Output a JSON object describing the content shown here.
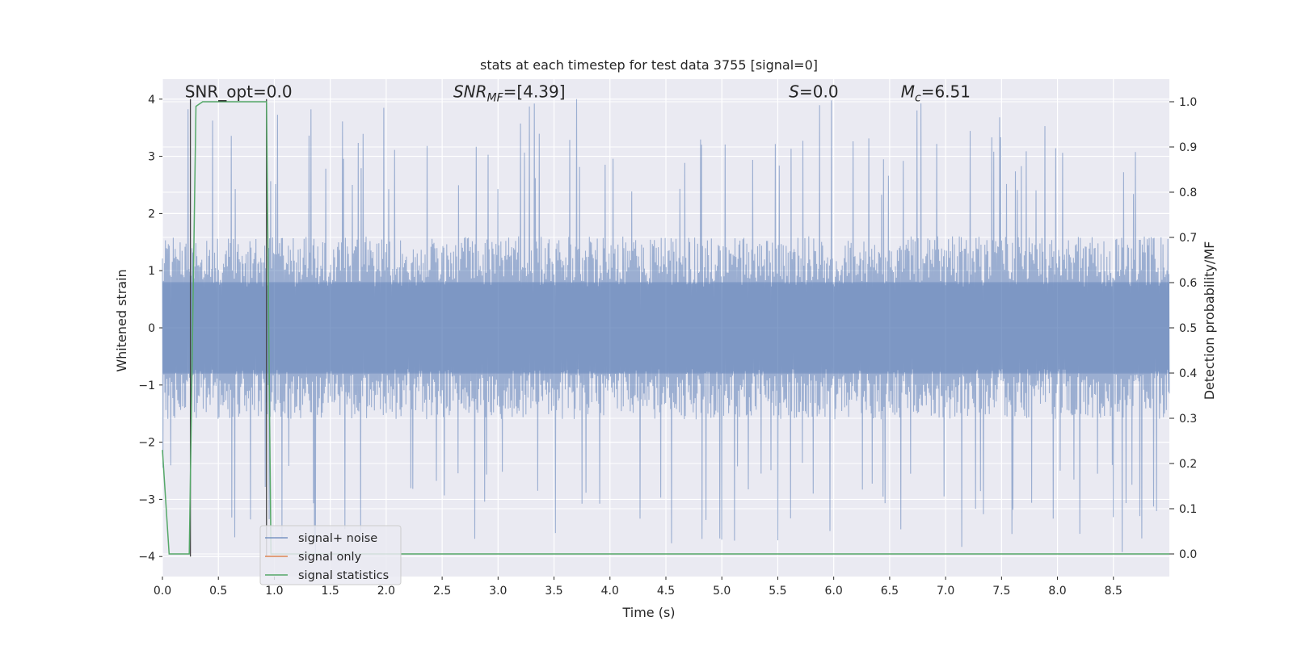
{
  "chart_data": {
    "type": "line",
    "title": "stats at each timestep for test data 3755 [signal=0]",
    "xlabel": "Time (s)",
    "ylabel": "Whitened strain",
    "y2label": "Detection probability/MF",
    "xlim": [
      0,
      9.0
    ],
    "ylim": [
      -4.35,
      4.35
    ],
    "y2lim": [
      -0.05,
      1.05
    ],
    "xticks": [
      0.0,
      0.5,
      1.0,
      1.5,
      2.0,
      2.5,
      3.0,
      3.5,
      4.0,
      4.5,
      5.0,
      5.5,
      6.0,
      6.5,
      7.0,
      7.5,
      8.0,
      8.5
    ],
    "xtick_labels": [
      "0.0",
      "0.5",
      "1.0",
      "1.5",
      "2.0",
      "2.5",
      "3.0",
      "3.5",
      "4.0",
      "4.5",
      "5.0",
      "5.5",
      "6.0",
      "6.5",
      "7.0",
      "7.5",
      "8.0",
      "8.5"
    ],
    "yticks": [
      4,
      3,
      2,
      1,
      0,
      -1,
      -2,
      -3,
      -4
    ],
    "ytick_labels": [
      "4",
      "3",
      "2",
      "1",
      "0",
      "−1",
      "−2",
      "−3",
      "−4"
    ],
    "y2ticks": [
      1.0,
      0.9,
      0.8,
      0.7,
      0.6,
      0.5,
      0.4,
      0.3,
      0.2,
      0.1,
      0.0
    ],
    "y2tick_labels": [
      "1.0",
      "0.9",
      "0.8",
      "0.7",
      "0.6",
      "0.5",
      "0.4",
      "0.3",
      "0.2",
      "0.1",
      "0.0"
    ],
    "grid": true,
    "legend_position": "lower-left",
    "annotations": [
      {
        "text": "SNR_opt=0.0",
        "x": 0.2,
        "y": 4.1
      },
      {
        "text": "SNR_MF=[4.39]",
        "x": 2.6,
        "y": 4.1
      },
      {
        "text": "S=0.0",
        "x": 5.6,
        "y": 4.1
      },
      {
        "text": "M_c=6.51",
        "x": 6.6,
        "y": 4.1
      }
    ],
    "series": [
      {
        "name": "signal+ noise",
        "kind": "noise",
        "color": "#4c72b0",
        "axis": "left",
        "core_amplitude": 1.6,
        "max_amplitude": 4.0,
        "n_samples": 2048
      },
      {
        "name": "signal only",
        "kind": "line",
        "color": "#dd8452",
        "axis": "left",
        "x": [],
        "y": []
      },
      {
        "name": "signal statistics",
        "kind": "line",
        "color": "#55a868",
        "axis": "right",
        "x": [
          0.0,
          0.06,
          0.12,
          0.18,
          0.24,
          0.3,
          0.36,
          0.42,
          0.48,
          0.54,
          0.6,
          0.66,
          0.72,
          0.78,
          0.84,
          0.9,
          0.93,
          0.97,
          1.02,
          9.0
        ],
        "y": [
          0.23,
          0.0,
          0.0,
          0.0,
          0.0,
          0.99,
          1.0,
          1.0,
          1.0,
          1.0,
          1.0,
          1.0,
          1.0,
          1.0,
          1.0,
          1.0,
          1.0,
          0.0,
          0.0,
          0.0
        ]
      },
      {
        "name": "markers",
        "kind": "vlines",
        "color": "#444444",
        "axis": "left",
        "x": [
          0.25,
          0.93
        ],
        "y": [
          -4.0,
          4.0
        ]
      }
    ]
  }
}
